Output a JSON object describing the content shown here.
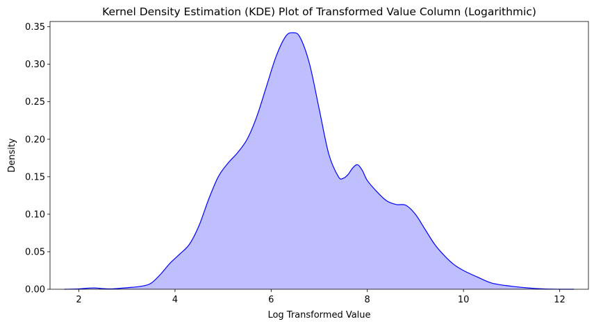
{
  "chart_data": {
    "type": "area",
    "title": "Kernel Density Estimation (KDE) Plot of Transformed Value Column (Logarithmic)",
    "xlabel": "Log Transformed Value",
    "ylabel": "Density",
    "xlim": [
      1.4,
      12.6
    ],
    "ylim": [
      0,
      0.357
    ],
    "xticks": [
      2,
      4,
      6,
      8,
      10,
      12
    ],
    "xtick_labels": [
      "2",
      "4",
      "6",
      "8",
      "10",
      "12"
    ],
    "yticks": [
      0,
      0.05,
      0.1,
      0.15,
      0.2,
      0.25,
      0.3,
      0.35
    ],
    "ytick_labels": [
      "0.00",
      "0.05",
      "0.10",
      "0.15",
      "0.20",
      "0.25",
      "0.30",
      "0.35"
    ],
    "grid": false,
    "legend": false,
    "line_color": "#0000ff",
    "fill_color": "#bfbfff",
    "series": [
      {
        "x": [
          1.7,
          2.0,
          2.3,
          2.5,
          2.7,
          3.0,
          3.3,
          3.5,
          3.7,
          3.9,
          4.1,
          4.3,
          4.5,
          4.7,
          4.9,
          5.1,
          5.3,
          5.5,
          5.7,
          5.9,
          6.1,
          6.3,
          6.45,
          6.6,
          6.8,
          7.0,
          7.2,
          7.4,
          7.5,
          7.6,
          7.7,
          7.8,
          7.9,
          8.0,
          8.2,
          8.4,
          8.6,
          8.8,
          9.0,
          9.2,
          9.4,
          9.6,
          9.8,
          10.0,
          10.3,
          10.6,
          11.0,
          11.5,
          12.0,
          12.3
        ],
        "y": [
          0.0,
          0.0005,
          0.0018,
          0.0008,
          0.0005,
          0.002,
          0.004,
          0.008,
          0.02,
          0.035,
          0.047,
          0.06,
          0.085,
          0.12,
          0.15,
          0.168,
          0.182,
          0.2,
          0.23,
          0.27,
          0.31,
          0.337,
          0.342,
          0.336,
          0.3,
          0.24,
          0.18,
          0.15,
          0.148,
          0.153,
          0.162,
          0.166,
          0.158,
          0.145,
          0.13,
          0.118,
          0.113,
          0.112,
          0.1,
          0.08,
          0.06,
          0.045,
          0.033,
          0.025,
          0.016,
          0.008,
          0.004,
          0.001,
          0.0,
          0.0
        ]
      }
    ]
  }
}
